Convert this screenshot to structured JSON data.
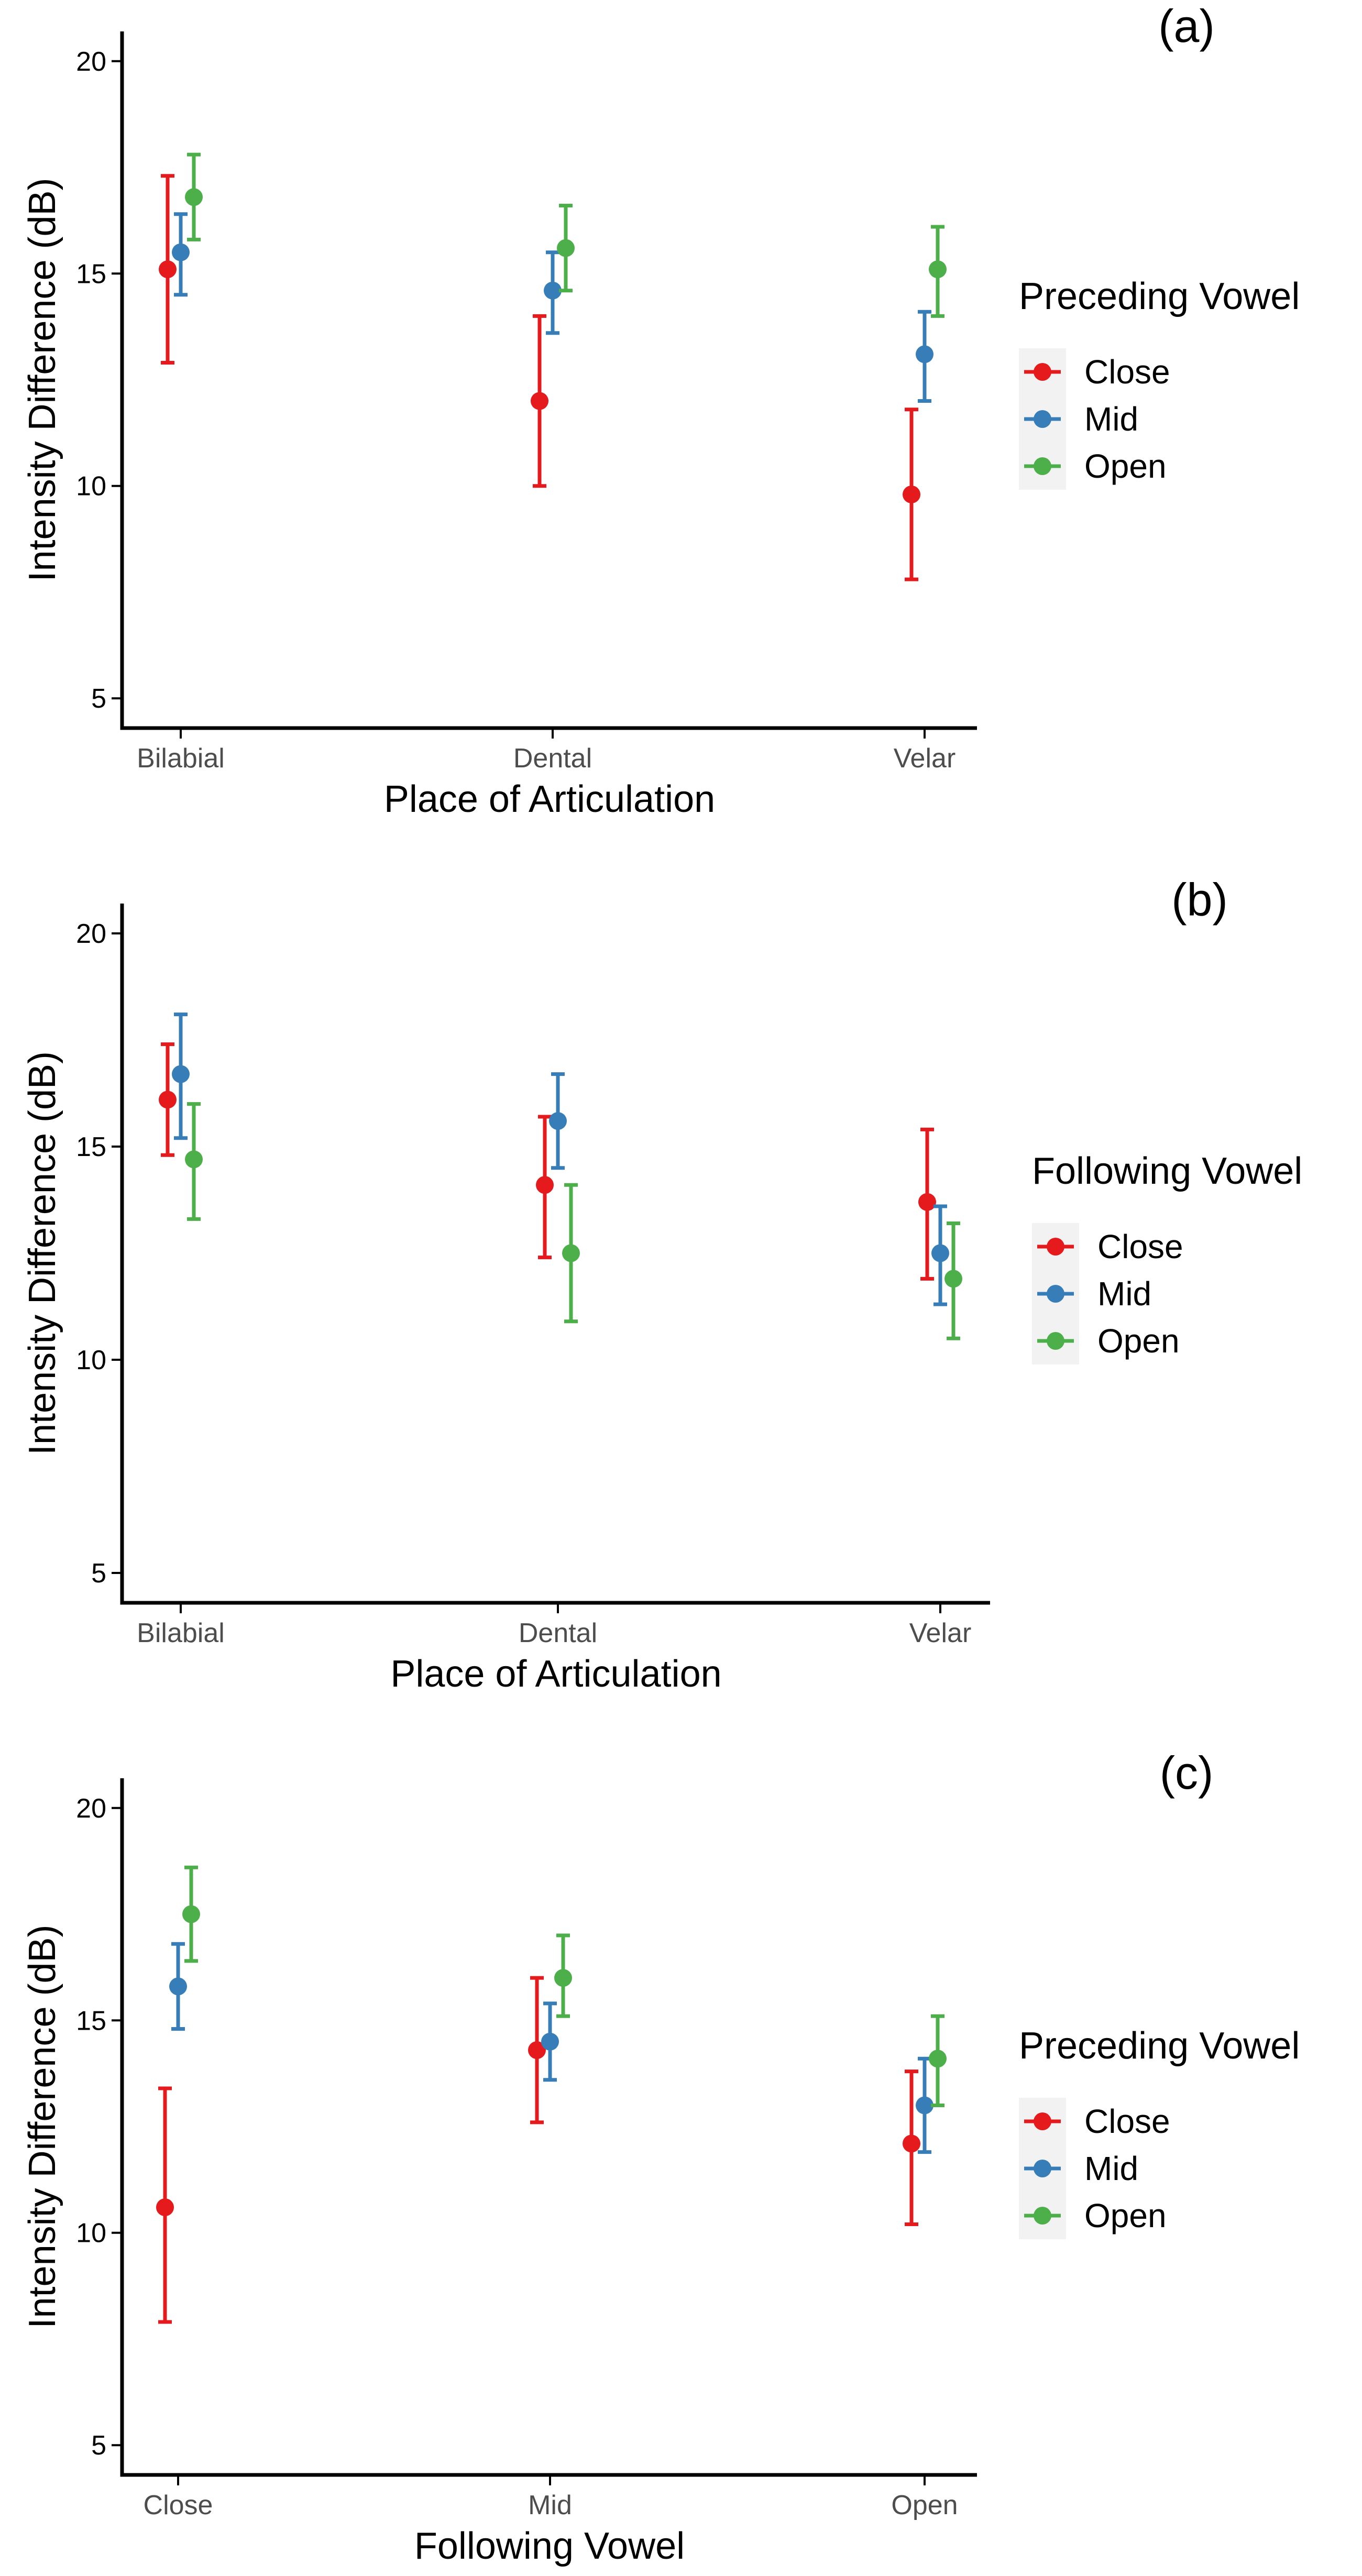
{
  "chart_data": [
    {
      "type": "scatter",
      "panel_label": "(a)",
      "title": "",
      "xlabel": "Place of Articulation",
      "ylabel": "Intensity Difference (dB)",
      "categories": [
        "Bilabial",
        "Dental",
        "Velar"
      ],
      "yticks": [
        "5",
        "10",
        "15",
        "20"
      ],
      "ylim": [
        4.3,
        20.7
      ],
      "legend_title": "Preceding Vowel",
      "legend_position": "right",
      "series": [
        {
          "name": "Close",
          "color": "#e41a1c",
          "values": [
            15.1,
            12.0,
            9.8
          ],
          "lower": [
            12.9,
            10.0,
            7.8
          ],
          "upper": [
            17.3,
            14.0,
            11.8
          ]
        },
        {
          "name": "Mid",
          "color": "#377eb8",
          "values": [
            15.5,
            14.6,
            13.1
          ],
          "lower": [
            14.5,
            13.6,
            12.0
          ],
          "upper": [
            16.4,
            15.5,
            14.1
          ]
        },
        {
          "name": "Open",
          "color": "#4daf4a",
          "values": [
            16.8,
            15.6,
            15.1
          ],
          "lower": [
            15.8,
            14.6,
            14.0
          ],
          "upper": [
            17.8,
            16.6,
            16.1
          ]
        }
      ]
    },
    {
      "type": "scatter",
      "panel_label": "(b)",
      "title": "",
      "xlabel": "Place of Articulation",
      "ylabel": "Intensity Difference (dB)",
      "categories": [
        "Bilabial",
        "Dental",
        "Velar"
      ],
      "yticks": [
        "5",
        "10",
        "15",
        "20"
      ],
      "ylim": [
        4.3,
        20.7
      ],
      "legend_title": "Following Vowel",
      "legend_position": "right",
      "series": [
        {
          "name": "Close",
          "color": "#e41a1c",
          "values": [
            16.1,
            14.1,
            13.7
          ],
          "lower": [
            14.8,
            12.4,
            11.9
          ],
          "upper": [
            17.4,
            15.7,
            15.4
          ]
        },
        {
          "name": "Mid",
          "color": "#377eb8",
          "values": [
            16.7,
            15.6,
            12.5
          ],
          "lower": [
            15.2,
            14.5,
            11.3
          ],
          "upper": [
            18.1,
            16.7,
            13.6
          ]
        },
        {
          "name": "Open",
          "color": "#4daf4a",
          "values": [
            14.7,
            12.5,
            11.9
          ],
          "lower": [
            13.3,
            10.9,
            10.5
          ],
          "upper": [
            16.0,
            14.1,
            13.2
          ]
        }
      ]
    },
    {
      "type": "scatter",
      "panel_label": "(c)",
      "title": "",
      "xlabel": "Following Vowel",
      "ylabel": "Intensity Difference (dB)",
      "categories": [
        "Close",
        "Mid",
        "Open"
      ],
      "yticks": [
        "5",
        "10",
        "15",
        "20"
      ],
      "ylim": [
        4.3,
        20.7
      ],
      "legend_title": "Preceding Vowel",
      "legend_position": "right",
      "series": [
        {
          "name": "Close",
          "color": "#e41a1c",
          "values": [
            10.6,
            14.3,
            12.1
          ],
          "lower": [
            7.9,
            12.6,
            10.2
          ],
          "upper": [
            13.4,
            16.0,
            13.8
          ]
        },
        {
          "name": "Mid",
          "color": "#377eb8",
          "values": [
            15.8,
            14.5,
            13.0
          ],
          "lower": [
            14.8,
            13.6,
            11.9
          ],
          "upper": [
            16.8,
            15.4,
            14.1
          ]
        },
        {
          "name": "Open",
          "color": "#4daf4a",
          "values": [
            17.5,
            16.0,
            14.1
          ],
          "lower": [
            16.4,
            15.1,
            13.0
          ],
          "upper": [
            18.6,
            17.0,
            15.1
          ]
        }
      ]
    }
  ]
}
